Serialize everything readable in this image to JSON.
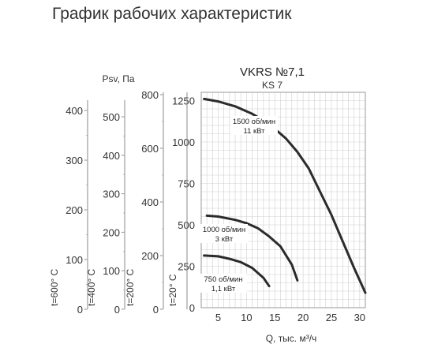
{
  "page": {
    "title": "График рабочих характеристик"
  },
  "chart_data": {
    "type": "line",
    "title": "VKRS №7,1",
    "subtitle": "KS 7",
    "xlabel": "Q, тыс. м³/ч",
    "xlim": [
      2,
      31
    ],
    "ylim": [
      0,
      1300
    ],
    "grid": true,
    "x_ticks": [
      "5",
      "10",
      "15",
      "20",
      "25",
      "30"
    ],
    "y_ticks": [
      "0",
      "250",
      "500",
      "750",
      "1000",
      "1250"
    ],
    "series": [
      {
        "name": "1500 об/мин 11 кВт",
        "label1": "1500 об/мин",
        "label2": "11 кВт",
        "x": [
          2.5,
          5,
          8,
          11,
          13,
          15,
          17,
          19,
          21,
          23,
          25,
          27,
          29,
          31
        ],
        "y": [
          1260,
          1245,
          1215,
          1170,
          1130,
          1080,
          1020,
          940,
          840,
          700,
          560,
          400,
          240,
          90
        ]
      },
      {
        "name": "1000 об/мин 3 кВт",
        "label1": "1000 об/мин",
        "label2": "3 кВт",
        "x": [
          3,
          5,
          8,
          10,
          12,
          14,
          16,
          18,
          19
        ],
        "y": [
          555,
          550,
          530,
          510,
          480,
          430,
          370,
          260,
          165
        ]
      },
      {
        "name": "750 об/мин 1,1 кВт",
        "label1": "750 об/мин",
        "label2": "1,1 кВт",
        "x": [
          2.5,
          5,
          7,
          9,
          11,
          13,
          14
        ],
        "y": [
          315,
          310,
          295,
          275,
          240,
          180,
          130
        ]
      }
    ],
    "pressure_axes": {
      "header": "Psv, Па",
      "axes": [
        {
          "label": "t=600° C",
          "ticks": [
            "0",
            "100",
            "200",
            "300",
            "400"
          ]
        },
        {
          "label": "t=400° C",
          "ticks": [
            "0",
            "100",
            "200",
            "300",
            "400",
            "500"
          ]
        },
        {
          "label": "t=200° C",
          "ticks": [
            "0",
            "200",
            "400",
            "600",
            "800"
          ]
        },
        {
          "label": "t=20° C",
          "ticks": []
        }
      ]
    }
  }
}
